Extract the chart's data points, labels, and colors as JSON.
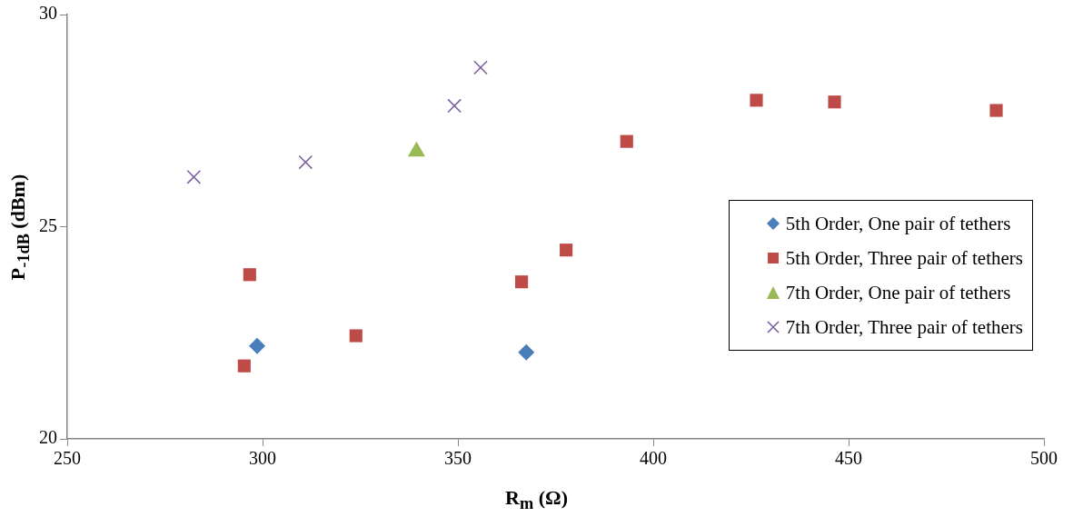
{
  "chart_data": {
    "type": "scatter",
    "xlabel": "R$_{m}$ (Ω)",
    "ylabel": "P$_{-1dB}$ (dBm)",
    "xlim": [
      250,
      500
    ],
    "xticks": [
      250,
      300,
      350,
      400,
      450,
      500
    ],
    "ylim": [
      20,
      30
    ],
    "yticks": [
      20,
      25,
      30
    ],
    "grid": false,
    "legend": "right",
    "series": [
      {
        "name": "5th Order, One pair of tethers",
        "color": "#4a7ebb",
        "marker": "diamond",
        "x": [
          298.6,
          367.5
        ],
        "values": [
          22.19,
          22.04
        ]
      },
      {
        "name": "5th Order, Three pair of tethers",
        "color": "#be4b48",
        "marker": "square",
        "x": [
          295.3,
          296.7,
          323.9,
          366.3,
          377.7,
          393.2,
          426.4,
          446.4,
          487.8
        ],
        "values": [
          21.72,
          23.87,
          22.43,
          23.7,
          24.45,
          27.01,
          27.98,
          27.94,
          27.74
        ]
      },
      {
        "name": "7th Order, One pair of tethers",
        "color": "#98b954",
        "marker": "triangle",
        "x": [
          339.4
        ],
        "values": [
          26.77
        ]
      },
      {
        "name": "7th Order, Three pair of tethers",
        "color": "#7d60a0",
        "marker": "cross",
        "x": [
          282.4,
          311.0,
          349.1,
          355.8
        ],
        "values": [
          26.17,
          26.52,
          27.85,
          28.75
        ]
      }
    ]
  }
}
